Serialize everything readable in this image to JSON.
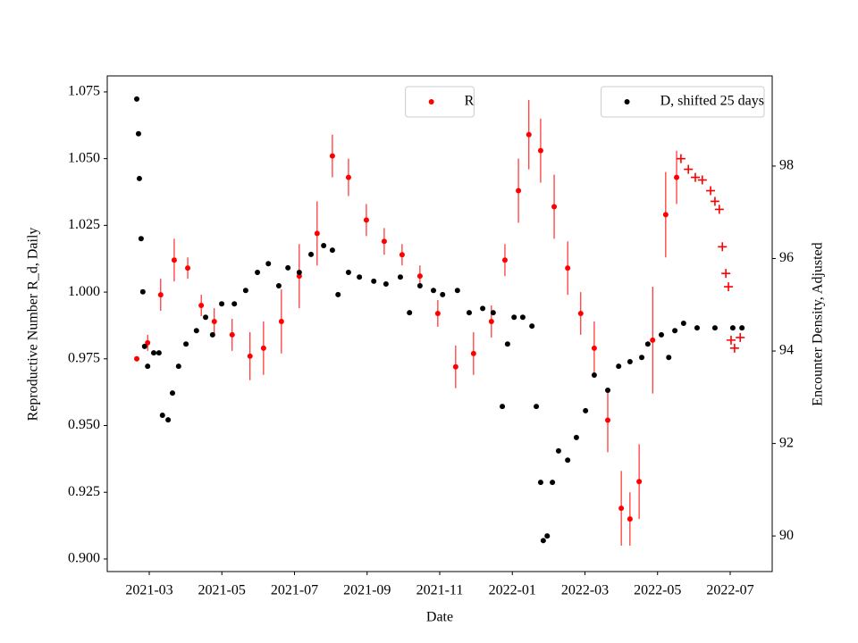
{
  "chart_data": {
    "type": "scatter",
    "xlabel": "Date",
    "ylabel": "Reproductive Number R_d, Daily",
    "y2label": "Encounter Density, Adjusted",
    "ycolor": "#ff0000",
    "xlim": [
      2021.0703,
      2022.5964
    ],
    "xticks": [
      {
        "value": 2021.1667,
        "label": "2021-03"
      },
      {
        "value": 2021.3333,
        "label": "2021-05"
      },
      {
        "value": 2021.5,
        "label": "2021-07"
      },
      {
        "value": 2021.6667,
        "label": "2021-09"
      },
      {
        "value": 2021.8333,
        "label": "2021-11"
      },
      {
        "value": 2022.0,
        "label": "2022-01"
      },
      {
        "value": 2022.1667,
        "label": "2022-03"
      },
      {
        "value": 2022.3333,
        "label": "2022-05"
      },
      {
        "value": 2022.5,
        "label": "2022-07"
      }
    ],
    "ylim": [
      0.8953,
      1.081
    ],
    "yticks": [
      {
        "value": 0.9,
        "label": "0.900"
      },
      {
        "value": 0.925,
        "label": "0.925"
      },
      {
        "value": 0.95,
        "label": "0.950"
      },
      {
        "value": 0.975,
        "label": "0.975"
      },
      {
        "value": 1.0,
        "label": "1.000"
      },
      {
        "value": 1.025,
        "label": "1.025"
      },
      {
        "value": 1.05,
        "label": "1.050"
      },
      {
        "value": 1.075,
        "label": "1.075"
      }
    ],
    "y2lim": [
      89.23,
      99.95
    ],
    "y2ticks": [
      90,
      92,
      94,
      96,
      98
    ],
    "series": [
      {
        "name": "R",
        "color": "#ff0000",
        "marker": "dot",
        "legend": "upper center",
        "x": [
          2021.138,
          2021.163,
          2021.193,
          2021.224,
          2021.255,
          2021.286,
          2021.316,
          2021.357,
          2021.398,
          2021.429,
          2021.47,
          2021.511,
          2021.552,
          2021.587,
          2021.624,
          2021.665,
          2021.706,
          2021.747,
          2021.788,
          2021.829,
          2021.87,
          2021.911,
          2021.952,
          2021.983,
          2022.014,
          2022.038,
          2022.065,
          2022.096,
          2022.127,
          2022.157,
          2022.188,
          2022.219,
          2022.25,
          2022.27,
          2022.291,
          2022.322,
          2022.352,
          2022.377
        ],
        "values": [
          0.975,
          0.981,
          0.999,
          1.012,
          1.009,
          0.995,
          0.989,
          0.984,
          0.976,
          0.979,
          0.989,
          1.006,
          1.022,
          1.051,
          1.043,
          1.027,
          1.019,
          1.014,
          1.006,
          0.992,
          0.972,
          0.977,
          0.989,
          1.012,
          1.038,
          1.059,
          1.053,
          1.032,
          1.009,
          0.992,
          0.979,
          0.952,
          0.919,
          0.915,
          0.929,
          0.982,
          1.029,
          1.043
        ],
        "errors": [
          0.001,
          0.003,
          0.006,
          0.008,
          0.004,
          0.004,
          0.005,
          0.006,
          0.009,
          0.01,
          0.012,
          0.012,
          0.012,
          0.008,
          0.007,
          0.006,
          0.005,
          0.004,
          0.004,
          0.005,
          0.008,
          0.008,
          0.006,
          0.006,
          0.012,
          0.013,
          0.012,
          0.012,
          0.01,
          0.008,
          0.01,
          0.012,
          0.014,
          0.01,
          0.014,
          0.02,
          0.016,
          0.01
        ]
      },
      {
        "color": "#ff0000",
        "marker": "plus",
        "x": [
          2022.387,
          2022.404,
          2022.42,
          2022.436,
          2022.455,
          2022.465,
          2022.475,
          2022.482,
          2022.49,
          2022.496,
          2022.502,
          2022.51,
          2022.523
        ],
        "values": [
          1.05,
          1.046,
          1.043,
          1.042,
          1.038,
          1.034,
          1.031,
          1.017,
          1.007,
          1.002,
          0.982,
          0.979,
          0.983
        ]
      },
      {
        "name": "D, shifted 25 days",
        "color": "#000000",
        "marker": "dot",
        "axis": "y2",
        "legend": "upper right",
        "x": [
          2021.138,
          2021.142,
          2021.144,
          2021.148,
          2021.152,
          2021.156,
          2021.163,
          2021.177,
          2021.189,
          2021.197,
          2021.21,
          2021.22,
          2021.234,
          2021.251,
          2021.275,
          2021.296,
          2021.312,
          2021.333,
          2021.362,
          2021.388,
          2021.415,
          2021.44,
          2021.464,
          2021.485,
          2021.511,
          2021.538,
          2021.567,
          2021.587,
          2021.6,
          2021.624,
          2021.649,
          2021.682,
          2021.71,
          2021.743,
          2021.764,
          2021.788,
          2021.819,
          2021.84,
          2021.874,
          2021.901,
          2021.932,
          2021.956,
          2021.977,
          2021.989,
          2022.004,
          2022.024,
          2022.045,
          2022.055,
          2022.065,
          2022.071,
          2022.08,
          2022.092,
          2022.106,
          2022.127,
          2022.147,
          2022.168,
          2022.188,
          2022.219,
          2022.244,
          2022.27,
          2022.297,
          2022.311,
          2022.342,
          2022.359,
          2022.373,
          2022.393,
          2022.424,
          2022.465,
          2022.506,
          2022.527
        ],
        "values": [
          99.45,
          98.7,
          97.73,
          96.43,
          95.28,
          94.1,
          93.67,
          93.96,
          93.96,
          92.61,
          92.51,
          93.09,
          93.67,
          94.15,
          94.44,
          94.73,
          94.35,
          95.02,
          95.02,
          95.31,
          95.7,
          95.89,
          95.41,
          95.8,
          95.7,
          96.09,
          96.28,
          96.18,
          95.22,
          95.7,
          95.6,
          95.51,
          95.45,
          95.6,
          94.83,
          95.41,
          95.31,
          95.22,
          95.31,
          94.83,
          94.92,
          94.83,
          92.8,
          94.15,
          94.73,
          94.73,
          94.54,
          92.8,
          91.16,
          89.9,
          90.0,
          91.16,
          91.84,
          91.64,
          92.13,
          92.71,
          93.48,
          93.15,
          93.67,
          93.77,
          93.86,
          94.15,
          94.35,
          93.86,
          94.44,
          94.6,
          94.5,
          94.5,
          94.5,
          94.5
        ]
      }
    ]
  }
}
